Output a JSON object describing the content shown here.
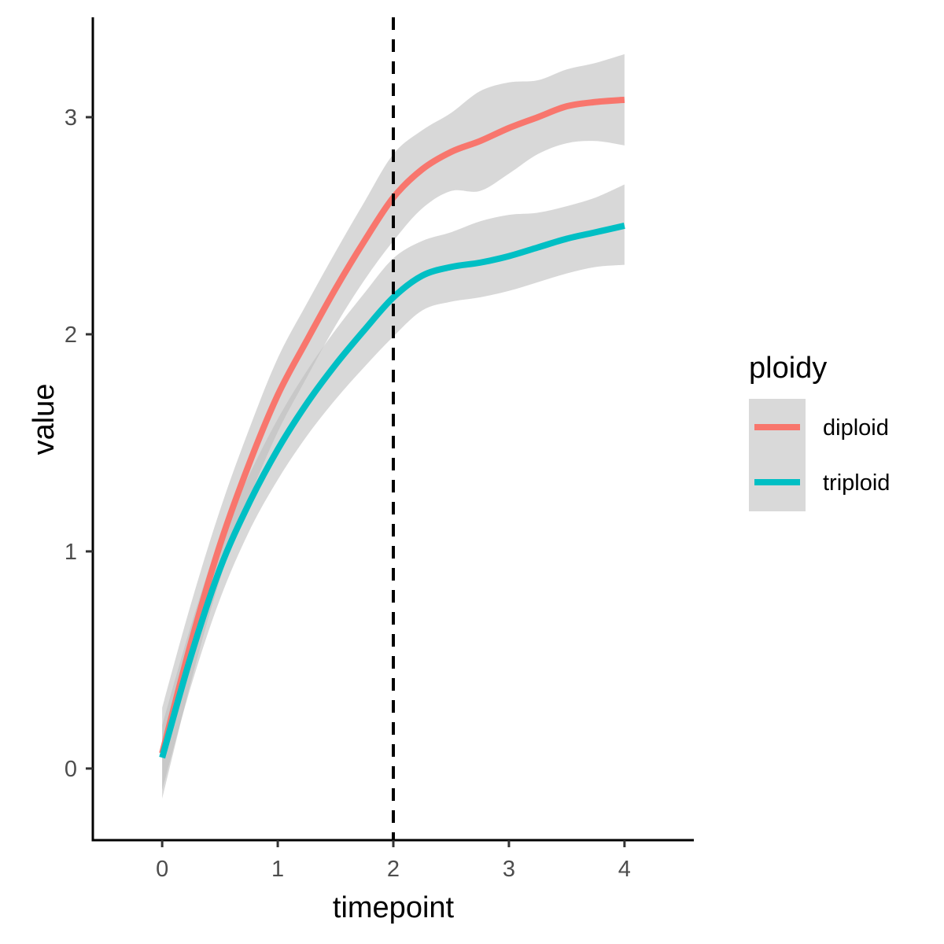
{
  "chart_data": {
    "type": "line",
    "xlabel": "timepoint",
    "ylabel": "value",
    "xlim": [
      -0.6,
      4.6
    ],
    "ylim": [
      -0.33,
      3.46
    ],
    "x_ticks": [
      0,
      1,
      2,
      3,
      4
    ],
    "y_ticks": [
      0,
      1,
      2,
      3
    ],
    "x_tick_labels": [
      "0",
      "1",
      "2",
      "3",
      "4"
    ],
    "y_tick_labels": [
      "0",
      "1",
      "2",
      "3"
    ],
    "vline": {
      "x": 2,
      "style": "dashed",
      "color": "#000000"
    },
    "grid": false,
    "legend": {
      "title": "ploidy",
      "placement": "right"
    },
    "ribbon_color": "#bebebe",
    "series": [
      {
        "name": "diploid",
        "color": "#F8766D",
        "x": [
          0,
          0.25,
          0.5,
          0.75,
          1.0,
          1.25,
          1.5,
          1.75,
          2.0,
          2.25,
          2.5,
          2.75,
          3.0,
          3.25,
          3.5,
          3.75,
          4.0
        ],
        "y": [
          0.07,
          0.58,
          1.03,
          1.4,
          1.72,
          1.97,
          2.21,
          2.43,
          2.63,
          2.76,
          2.84,
          2.89,
          2.95,
          3.0,
          3.05,
          3.07,
          3.08
        ],
        "lower": [
          -0.14,
          0.4,
          0.87,
          1.24,
          1.55,
          1.8,
          2.04,
          2.25,
          2.43,
          2.58,
          2.66,
          2.66,
          2.74,
          2.83,
          2.88,
          2.89,
          2.87
        ],
        "upper": [
          0.28,
          0.76,
          1.19,
          1.56,
          1.89,
          2.14,
          2.38,
          2.61,
          2.83,
          2.94,
          3.02,
          3.12,
          3.16,
          3.17,
          3.22,
          3.25,
          3.29
        ]
      },
      {
        "name": "triploid",
        "color": "#00BFC4",
        "x": [
          0,
          0.25,
          0.5,
          0.75,
          1.0,
          1.25,
          1.5,
          1.75,
          2.0,
          2.25,
          2.5,
          2.75,
          3.0,
          3.25,
          3.5,
          3.75,
          4.0
        ],
        "y": [
          0.05,
          0.52,
          0.92,
          1.22,
          1.47,
          1.68,
          1.86,
          2.02,
          2.17,
          2.27,
          2.31,
          2.33,
          2.36,
          2.4,
          2.44,
          2.47,
          2.5
        ],
        "lower": [
          -0.1,
          0.38,
          0.78,
          1.09,
          1.33,
          1.53,
          1.7,
          1.85,
          1.99,
          2.11,
          2.15,
          2.17,
          2.2,
          2.24,
          2.28,
          2.31,
          2.32
        ],
        "upper": [
          0.2,
          0.66,
          1.06,
          1.35,
          1.61,
          1.83,
          2.02,
          2.19,
          2.35,
          2.43,
          2.47,
          2.52,
          2.55,
          2.56,
          2.59,
          2.63,
          2.69
        ]
      }
    ]
  }
}
